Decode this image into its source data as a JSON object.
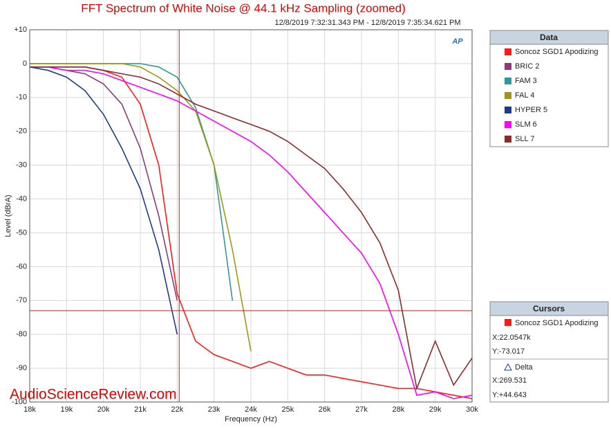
{
  "chart_data": {
    "type": "line",
    "title": "FFT Spectrum of White Noise @ 44.1 kHz Sampling (zoomed)",
    "subtitle": "12/8/2019 7:32:31.343 PM - 12/8/2019 7:35:34.621 PM",
    "x_label": "Frequency (Hz)",
    "y_label": "Level (dBrA)",
    "watermark": "AudioScienceReview.com",
    "logo": "AP",
    "legend_title": "Data",
    "x": [
      18000,
      18500,
      19000,
      19500,
      20000,
      20500,
      21000,
      21500,
      22000,
      22500,
      23000,
      23500,
      24000,
      24500,
      25000,
      25500,
      26000,
      26500,
      27000,
      27500,
      28000,
      28500,
      29000,
      29500,
      30000
    ],
    "series": [
      {
        "name": "Soncoz SGD1 Apodizing",
        "color": "#ff1a1a",
        "values": [
          -1,
          -1,
          -1,
          -1,
          -2,
          -4,
          -12,
          -30,
          -68,
          -82,
          -86,
          -88,
          -90,
          -88,
          -90,
          -92,
          -92,
          -93,
          -94,
          -95,
          -96,
          -96,
          -97,
          -98,
          -99
        ]
      },
      {
        "name": "BRIC 2",
        "color": "#8b3a7a",
        "values": [
          -1,
          -1,
          -2,
          -3,
          -6,
          -12,
          -25,
          -45,
          -70,
          null,
          null,
          null,
          null,
          null,
          null,
          null,
          null,
          null,
          null,
          null,
          null,
          null,
          null,
          null,
          null
        ]
      },
      {
        "name": "FAM 3",
        "color": "#2e9a9a",
        "values": [
          0,
          0,
          0,
          0,
          0,
          0,
          0,
          -1,
          -4,
          -13,
          -30,
          -70,
          null,
          null,
          null,
          null,
          null,
          null,
          null,
          null,
          null,
          null,
          null,
          null,
          null
        ]
      },
      {
        "name": "FAL 4",
        "color": "#9a9a1a",
        "values": [
          0,
          0,
          0,
          0,
          0,
          0,
          -1,
          -4,
          -8,
          -14,
          -30,
          -55,
          -85,
          null,
          null,
          null,
          null,
          null,
          null,
          null,
          null,
          null,
          null,
          null,
          null
        ]
      },
      {
        "name": "HYPER 5",
        "color": "#1f3a8a",
        "values": [
          -1,
          -2,
          -4,
          -8,
          -15,
          -25,
          -37,
          -55,
          -80,
          null,
          null,
          null,
          null,
          null,
          null,
          null,
          null,
          null,
          null,
          null,
          null,
          null,
          null,
          null,
          null
        ]
      },
      {
        "name": "SLM 6",
        "color": "#ff00ff",
        "values": [
          -1,
          -1,
          -2,
          -2,
          -3,
          -5,
          -7,
          -9,
          -11,
          -14,
          -17,
          -20,
          -23,
          -27,
          -32,
          -38,
          -44,
          -50,
          -56,
          -65,
          -80,
          -98,
          -97,
          -99,
          -98
        ]
      },
      {
        "name": "SLL 7",
        "color": "#8b2a2a",
        "values": [
          -1,
          -1,
          -1,
          -1,
          -2,
          -3,
          -4,
          -6,
          -9,
          -12,
          -14,
          -16,
          -18,
          -20,
          -23,
          -27,
          -31,
          -37,
          -44,
          -53,
          -67,
          -96,
          -82,
          -95,
          -87
        ]
      }
    ],
    "xlim": [
      18000,
      30000
    ],
    "ylim": [
      -100,
      10
    ],
    "xticks": [
      {
        "value": 18000,
        "label": "18k"
      },
      {
        "value": 19000,
        "label": "19k"
      },
      {
        "value": 20000,
        "label": "20k"
      },
      {
        "value": 21000,
        "label": "21k"
      },
      {
        "value": 22000,
        "label": "22k"
      },
      {
        "value": 23000,
        "label": "23k"
      },
      {
        "value": 24000,
        "label": "24k"
      },
      {
        "value": 25000,
        "label": "25k"
      },
      {
        "value": 26000,
        "label": "26k"
      },
      {
        "value": 27000,
        "label": "27k"
      },
      {
        "value": 28000,
        "label": "28k"
      },
      {
        "value": 29000,
        "label": "29k"
      },
      {
        "value": 30000,
        "label": "30k"
      }
    ],
    "yticks": [
      {
        "value": 10,
        "label": "+10"
      },
      0,
      -10,
      -20,
      -30,
      -40,
      -50,
      -60,
      -70,
      -80,
      -90,
      -100
    ],
    "grid": true,
    "cursor": {
      "title": "Cursors",
      "series": "Soncoz SGD1 Apodizing",
      "color": "#ff1a1a",
      "x": {
        "value": 22054.7,
        "label": "X:22.0547k"
      },
      "y": {
        "value": -73.017,
        "label": "Y:-73.017"
      },
      "delta_title": "Delta",
      "delta_x": "X:269.531",
      "delta_y": "Y:+44.643"
    }
  }
}
